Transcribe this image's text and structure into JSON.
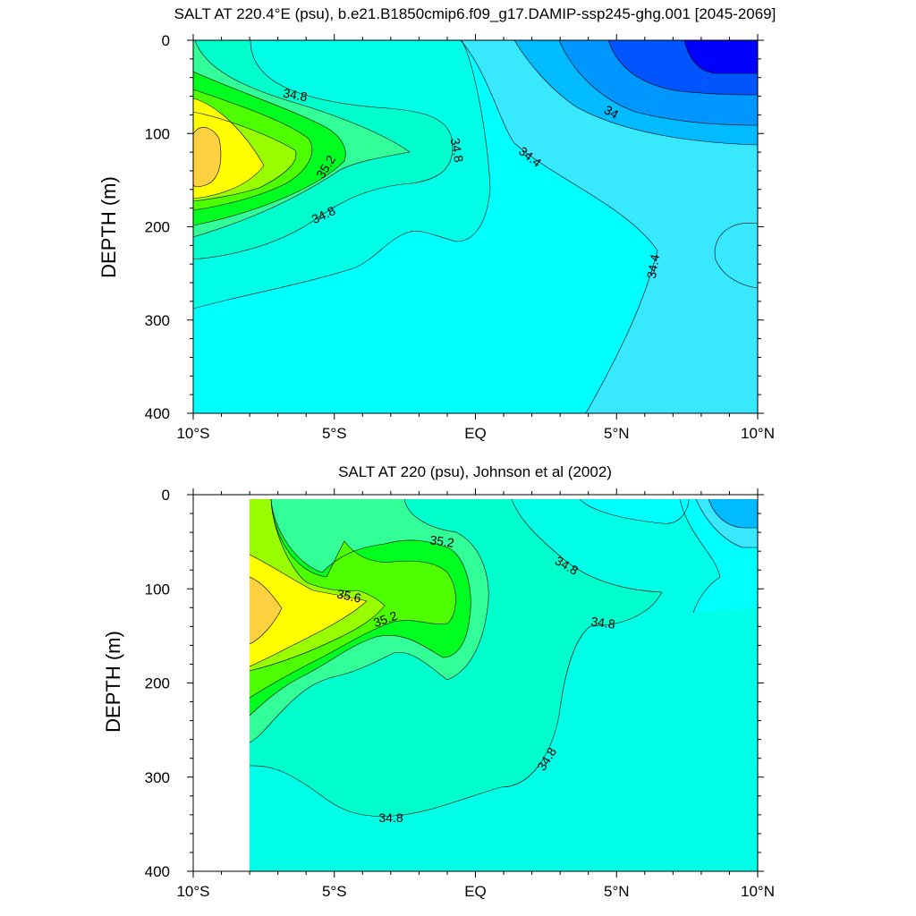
{
  "colors": {
    "s33_6": "#0000ff",
    "s33_8": "#0055ff",
    "s34_0": "#0096ff",
    "s34_2": "#00bbff",
    "s34_4": "#38e8ff",
    "s34_6": "#00ffff",
    "s34_7": "#00ffe6",
    "s34_8": "#00ffcc",
    "s35_0": "#33ff99",
    "s35_2": "#00ff20",
    "s35_4": "#4dff00",
    "s35_6": "#99ff00",
    "s35_8": "#ffff00",
    "s36_0": "#ffd040"
  },
  "chart_data": [
    {
      "type": "contour",
      "title": "SALT AT 220.4°E (psu), b.e21.B1850cmip6.f09_g17.DAMIP-ssp245-ghg.001 [2045-2069]",
      "xlabel": "",
      "ylabel": "DEPTH (m)",
      "xlim": [
        -10,
        10
      ],
      "ylim": [
        400,
        0
      ],
      "x_ticks": [
        {
          "value": -10,
          "label": "10°S"
        },
        {
          "value": -5,
          "label": "5°S"
        },
        {
          "value": 0,
          "label": "EQ"
        },
        {
          "value": 5,
          "label": "5°N"
        },
        {
          "value": 10,
          "label": "10°N"
        }
      ],
      "y_ticks": [
        0,
        100,
        200,
        300,
        400
      ],
      "contour_labels": [
        "34.8",
        "34.8",
        "35.2",
        "34.8",
        "34",
        "34.4",
        "34.4"
      ],
      "features": {
        "salinity_maximum": {
          "lat": -9.5,
          "depth": 140,
          "value": 36.0
        },
        "fresh_minimum": {
          "lat": 9.5,
          "depth": 20,
          "value": 33.6
        }
      }
    },
    {
      "type": "contour",
      "title": "SALT AT 220 (psu), Johnson et al (2002)",
      "xlabel": "",
      "ylabel": "DEPTH (m)",
      "xlim": [
        -10,
        10
      ],
      "ylim": [
        400,
        0
      ],
      "x_ticks": [
        {
          "value": -10,
          "label": "10°S"
        },
        {
          "value": -5,
          "label": "5°S"
        },
        {
          "value": 0,
          "label": "EQ"
        },
        {
          "value": 5,
          "label": "5°N"
        },
        {
          "value": 10,
          "label": "10°N"
        }
      ],
      "y_ticks": [
        0,
        100,
        200,
        300,
        400
      ],
      "data_start_lat": -8,
      "contour_labels": [
        "35.2",
        "34.8",
        "35.6",
        "35.2",
        "34.8",
        "34.8",
        "34.8"
      ],
      "features": {
        "salinity_maximum": {
          "lat": -7.5,
          "depth": 130,
          "value": 36.0
        }
      }
    }
  ]
}
